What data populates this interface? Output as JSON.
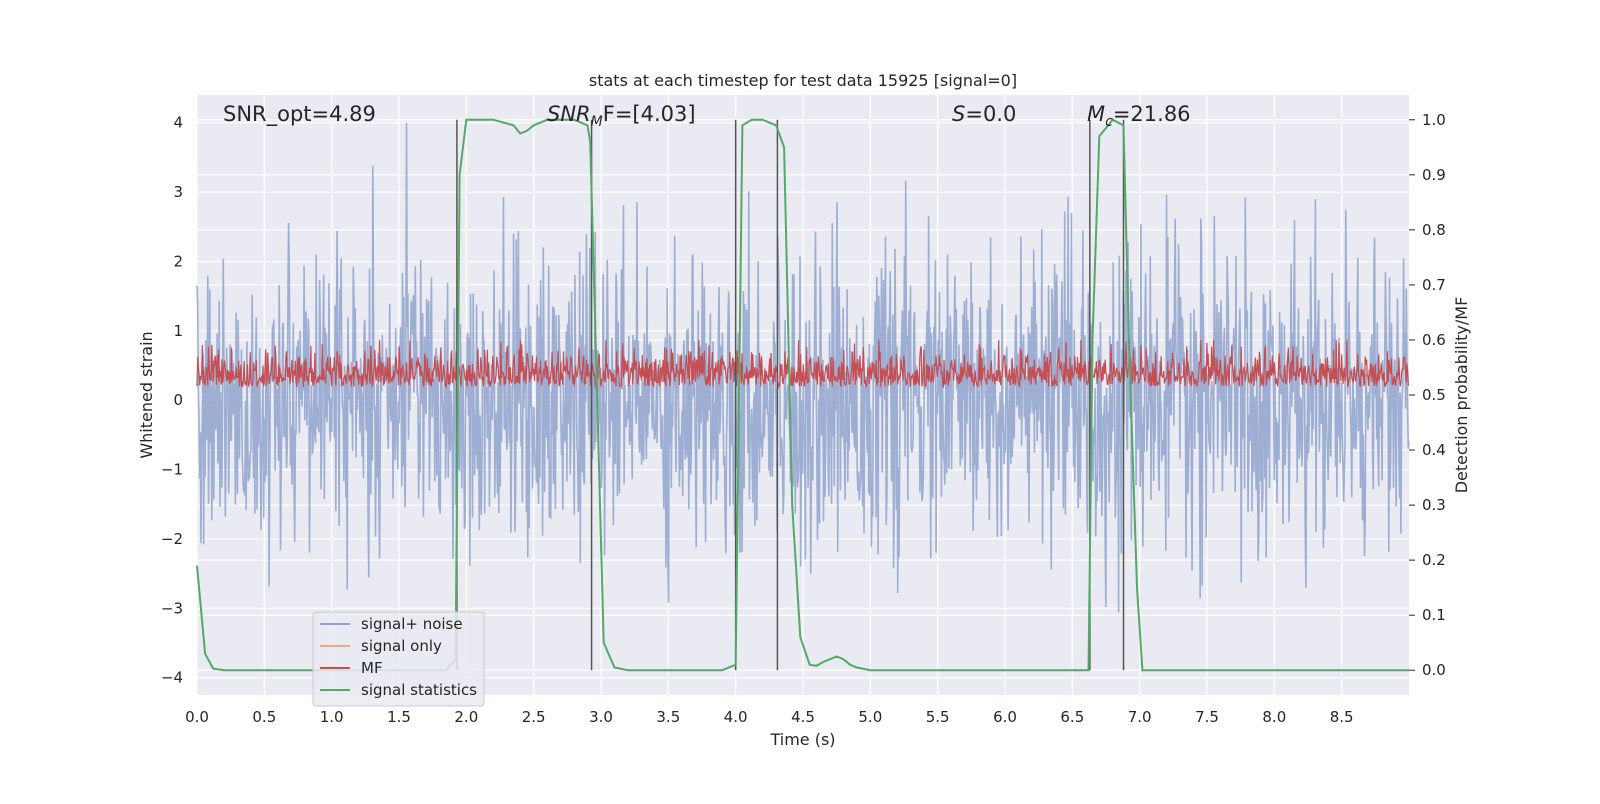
{
  "chart_data": {
    "type": "line",
    "title": "stats at each timestep for test data 15925 [signal=0]",
    "xlabel": "Time (s)",
    "ylabel_left": "Whitened strain",
    "ylabel_right": "Detection probability/MF",
    "xlim": [
      0.0,
      9.0
    ],
    "ylim_left": [
      -4.25,
      4.4
    ],
    "ylim_right": [
      -0.045,
      1.045
    ],
    "x_ticks": [
      "0.0",
      "0.5",
      "1.0",
      "1.5",
      "2.0",
      "2.5",
      "3.0",
      "3.5",
      "4.0",
      "4.5",
      "5.0",
      "5.5",
      "6.0",
      "6.5",
      "7.0",
      "7.5",
      "8.0",
      "8.5"
    ],
    "y_ticks_left": [
      "4",
      "3",
      "2",
      "1",
      "0",
      "−1",
      "−2",
      "−3",
      "−4"
    ],
    "y_ticks_right": [
      "1.0",
      "0.9",
      "0.8",
      "0.7",
      "0.6",
      "0.5",
      "0.4",
      "0.3",
      "0.2",
      "0.1",
      "0.0"
    ],
    "grid": true,
    "legend_position": "lower-left",
    "annotations": {
      "snr_opt": "SNR_opt=4.89",
      "snr_mf_base": "SNR",
      "snr_mf_sub": "M",
      "snr_mf_rest": "F=[4.03]",
      "s_label_var": "S",
      "s_label_rest": "=0.0",
      "mc_label_var": "M",
      "mc_label_sub": "c",
      "mc_label_rest": "=21.86"
    },
    "series": [
      {
        "name": "signal+ noise",
        "color": "#8fa3cc",
        "description_range": [
          -3.7,
          4.0
        ]
      },
      {
        "name": "signal only",
        "color": "#e8a98c"
      },
      {
        "name": "MF",
        "color": "#c44e52",
        "description_range_right": [
          0.49,
          0.6
        ]
      },
      {
        "name": "signal statistics",
        "color": "#55a868",
        "axis": "right",
        "x": [
          0.0,
          0.06,
          0.12,
          0.2,
          0.4,
          0.8,
          1.2,
          1.6,
          1.85,
          1.92,
          1.95,
          2.0,
          2.05,
          2.2,
          2.35,
          2.4,
          2.45,
          2.5,
          2.6,
          2.8,
          2.9,
          2.92,
          2.96,
          3.02,
          3.1,
          3.2,
          3.5,
          3.9,
          4.0,
          4.02,
          4.05,
          4.12,
          4.2,
          4.3,
          4.36,
          4.42,
          4.48,
          4.55,
          4.6,
          4.65,
          4.7,
          4.75,
          4.8,
          4.85,
          4.9,
          5.0,
          5.2,
          6.0,
          6.5,
          6.62,
          6.65,
          6.7,
          6.8,
          6.88,
          6.92,
          6.98,
          7.02,
          7.5,
          8.0,
          9.0
        ],
        "y": [
          0.19,
          0.03,
          0.003,
          0.0,
          0.0,
          0.0,
          0.0,
          0.0,
          0.0,
          0.02,
          0.9,
          1.0,
          1.0,
          1.0,
          0.99,
          0.975,
          0.98,
          0.99,
          1.0,
          1.0,
          0.99,
          0.96,
          0.6,
          0.05,
          0.005,
          0.0,
          0.0,
          0.0,
          0.01,
          0.4,
          0.99,
          1.0,
          1.0,
          0.99,
          0.95,
          0.3,
          0.06,
          0.01,
          0.008,
          0.015,
          0.02,
          0.025,
          0.02,
          0.01,
          0.005,
          0.0,
          0.0,
          0.0,
          0.0,
          0.0,
          0.6,
          0.97,
          1.0,
          0.99,
          0.6,
          0.15,
          0.0,
          0.0,
          0.0,
          0.0
        ]
      }
    ],
    "vlines_x": [
      1.93,
      2.93,
      4.0,
      4.31,
      6.63,
      6.88
    ],
    "noise_seed": 15925
  }
}
